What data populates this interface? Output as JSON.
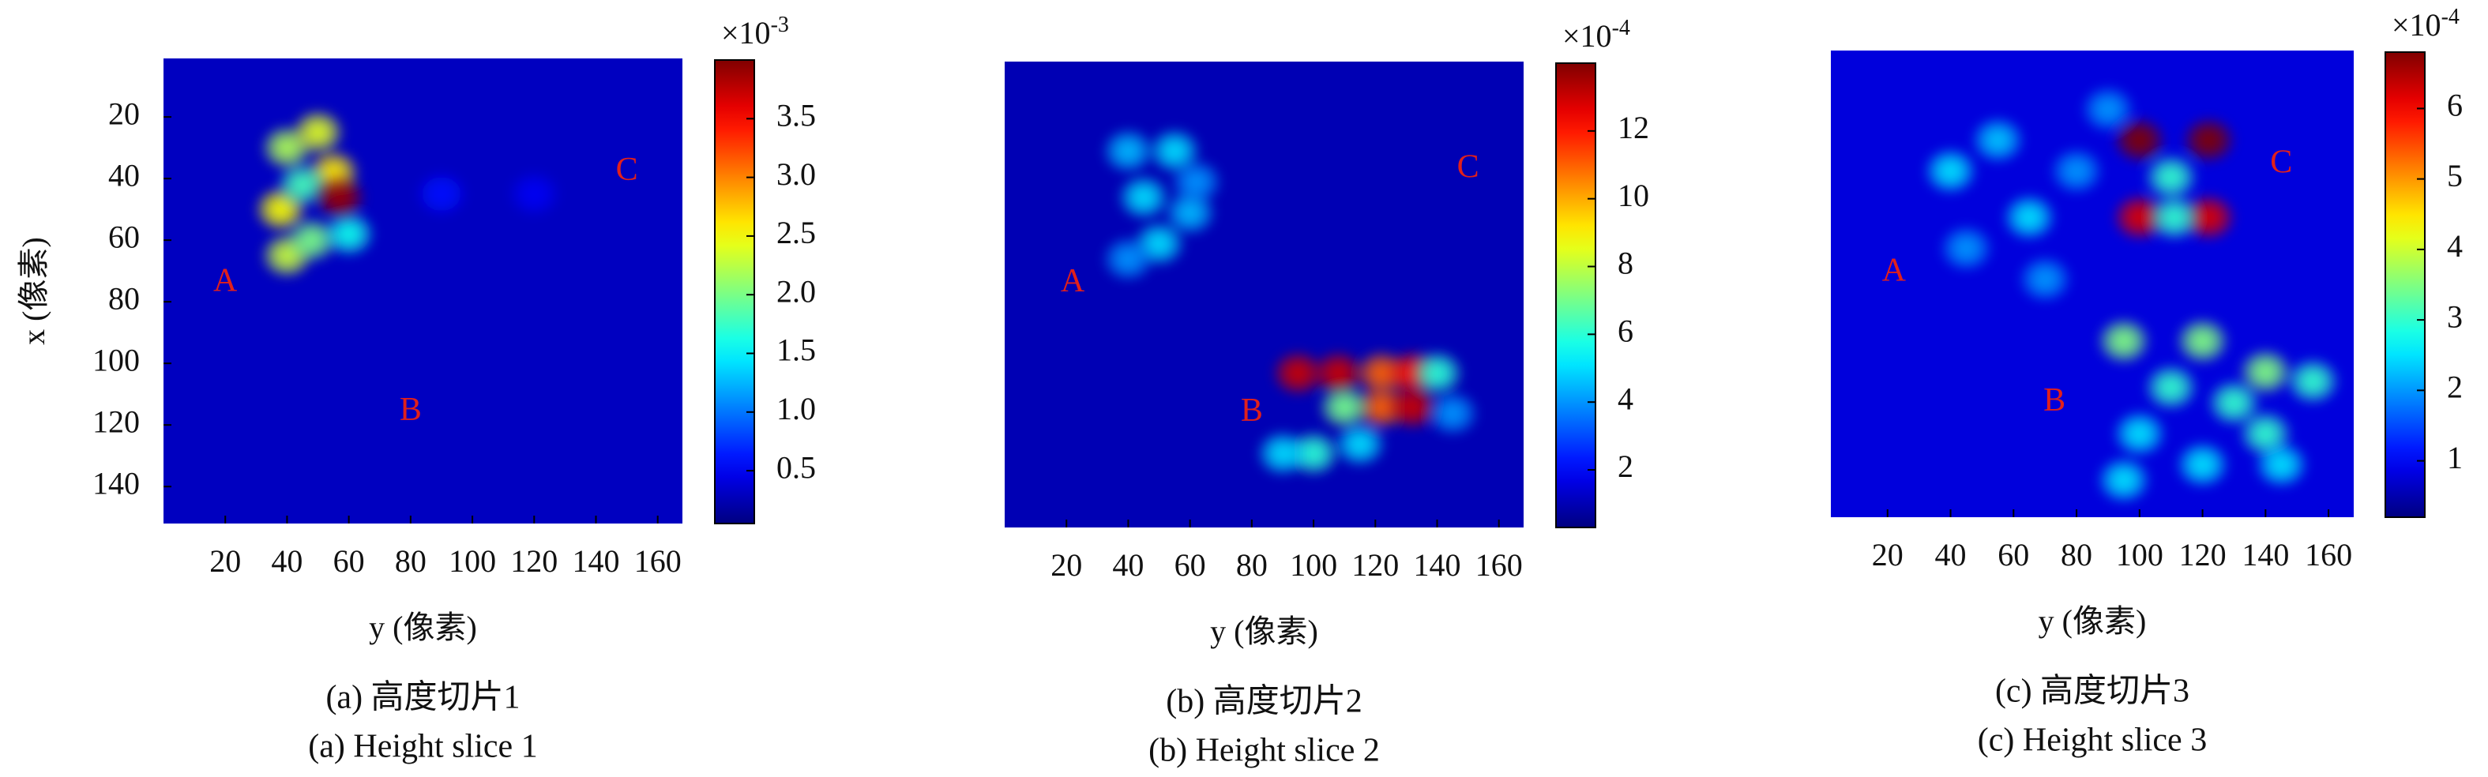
{
  "chart_data": [
    {
      "type": "heatmap",
      "xlabel": "y (像素)",
      "ylabel": "x (像素)",
      "caption_cn": "(a) 高度切片1",
      "caption_en": "(a) Height slice 1",
      "xlim": [
        0,
        168
      ],
      "ylim": [
        1,
        152
      ],
      "xticks": [
        20,
        40,
        60,
        80,
        100,
        120,
        140,
        160
      ],
      "yticks": [
        20,
        40,
        60,
        80,
        100,
        120,
        140
      ],
      "clim": [
        0.05,
        4.0
      ],
      "cticks": [
        0.5,
        {
          "value": 1,
          "label": "1.0"
        },
        1.5,
        {
          "value": 2,
          "label": "2.0"
        },
        2.5,
        {
          "value": 3,
          "label": "3.0"
        },
        3.5
      ],
      "colorbar_multiplier": "×10",
      "colorbar_exponent": "-3",
      "colormap": "jet",
      "background": 0.3,
      "blobs": [
        {
          "x": 40,
          "y": 30,
          "value": 2.2
        },
        {
          "x": 38,
          "y": 50,
          "value": 2.5
        },
        {
          "x": 40,
          "y": 65,
          "value": 2.3
        },
        {
          "x": 50,
          "y": 25,
          "value": 2.4
        },
        {
          "x": 55,
          "y": 38,
          "value": 2.6
        },
        {
          "x": 48,
          "y": 60,
          "value": 2.0
        },
        {
          "x": 60,
          "y": 58,
          "value": 1.6
        },
        {
          "x": 45,
          "y": 42,
          "value": 1.8
        },
        {
          "x": 57,
          "y": 46,
          "value": 3.9
        },
        {
          "x": 90,
          "y": 45,
          "value": 0.6
        },
        {
          "x": 120,
          "y": 45,
          "value": 0.5
        }
      ],
      "annotations": [
        "A",
        "B",
        "C"
      ]
    },
    {
      "type": "heatmap",
      "xlabel": "y (像素)",
      "caption_cn": "(b) 高度切片2",
      "caption_en": "(b) Height slice 2",
      "xlim": [
        0,
        168
      ],
      "ylim": [
        1,
        152
      ],
      "xticks": [
        20,
        40,
        60,
        80,
        100,
        120,
        140,
        160
      ],
      "clim": [
        0.3,
        14
      ],
      "cticks": [
        2,
        4,
        6,
        8,
        10,
        12
      ],
      "colorbar_multiplier": "×10",
      "colorbar_exponent": "-4",
      "colormap": "jet",
      "background": 1,
      "blobs": [
        {
          "x": 40,
          "y": 30,
          "value": 4.5
        },
        {
          "x": 55,
          "y": 30,
          "value": 5
        },
        {
          "x": 45,
          "y": 45,
          "value": 5
        },
        {
          "x": 60,
          "y": 50,
          "value": 4.5
        },
        {
          "x": 50,
          "y": 60,
          "value": 5
        },
        {
          "x": 40,
          "y": 65,
          "value": 4
        },
        {
          "x": 62,
          "y": 40,
          "value": 4
        },
        {
          "x": 95,
          "y": 102,
          "value": 13
        },
        {
          "x": 108,
          "y": 102,
          "value": 13
        },
        {
          "x": 122,
          "y": 102,
          "value": 11
        },
        {
          "x": 132,
          "y": 102,
          "value": 12
        },
        {
          "x": 122,
          "y": 113,
          "value": 11
        },
        {
          "x": 132,
          "y": 113,
          "value": 13
        },
        {
          "x": 110,
          "y": 113,
          "value": 7
        },
        {
          "x": 100,
          "y": 128,
          "value": 6
        },
        {
          "x": 115,
          "y": 125,
          "value": 5
        },
        {
          "x": 140,
          "y": 102,
          "value": 6
        },
        {
          "x": 145,
          "y": 115,
          "value": 4
        },
        {
          "x": 90,
          "y": 128,
          "value": 5
        }
      ],
      "annotations": [
        "A",
        "B",
        "C"
      ]
    },
    {
      "type": "heatmap",
      "xlabel": "y (像素)",
      "caption_cn": "(c) 高度切片3",
      "caption_en": "(c) Height slice 3",
      "xlim": [
        2,
        168
      ],
      "ylim": [
        1,
        152
      ],
      "xticks": [
        20,
        40,
        60,
        80,
        100,
        120,
        140,
        160
      ],
      "clim": [
        0.2,
        6.8
      ],
      "cticks": [
        1,
        2,
        3,
        4,
        5,
        6
      ],
      "colorbar_multiplier": "×10",
      "colorbar_exponent": "-4",
      "colormap": "jet",
      "background": 0.8,
      "blobs": [
        {
          "x": 100,
          "y": 30,
          "value": 6.8
        },
        {
          "x": 122,
          "y": 30,
          "value": 6.8
        },
        {
          "x": 100,
          "y": 55,
          "value": 6.2
        },
        {
          "x": 122,
          "y": 55,
          "value": 6.2
        },
        {
          "x": 110,
          "y": 42,
          "value": 3
        },
        {
          "x": 111,
          "y": 55,
          "value": 3
        },
        {
          "x": 40,
          "y": 40,
          "value": 2.5
        },
        {
          "x": 55,
          "y": 30,
          "value": 2.3
        },
        {
          "x": 65,
          "y": 55,
          "value": 2.5
        },
        {
          "x": 80,
          "y": 40,
          "value": 2
        },
        {
          "x": 45,
          "y": 65,
          "value": 2
        },
        {
          "x": 70,
          "y": 75,
          "value": 2
        },
        {
          "x": 90,
          "y": 20,
          "value": 2
        },
        {
          "x": 95,
          "y": 95,
          "value": 3.5
        },
        {
          "x": 120,
          "y": 95,
          "value": 3.5
        },
        {
          "x": 140,
          "y": 105,
          "value": 3.5
        },
        {
          "x": 155,
          "y": 108,
          "value": 3
        },
        {
          "x": 110,
          "y": 110,
          "value": 3
        },
        {
          "x": 130,
          "y": 115,
          "value": 3
        },
        {
          "x": 140,
          "y": 125,
          "value": 3
        },
        {
          "x": 100,
          "y": 125,
          "value": 2.5
        },
        {
          "x": 120,
          "y": 135,
          "value": 2.5
        },
        {
          "x": 145,
          "y": 135,
          "value": 2.5
        },
        {
          "x": 95,
          "y": 140,
          "value": 2.5
        }
      ],
      "annotations": [
        "A",
        "B",
        "C"
      ]
    }
  ]
}
